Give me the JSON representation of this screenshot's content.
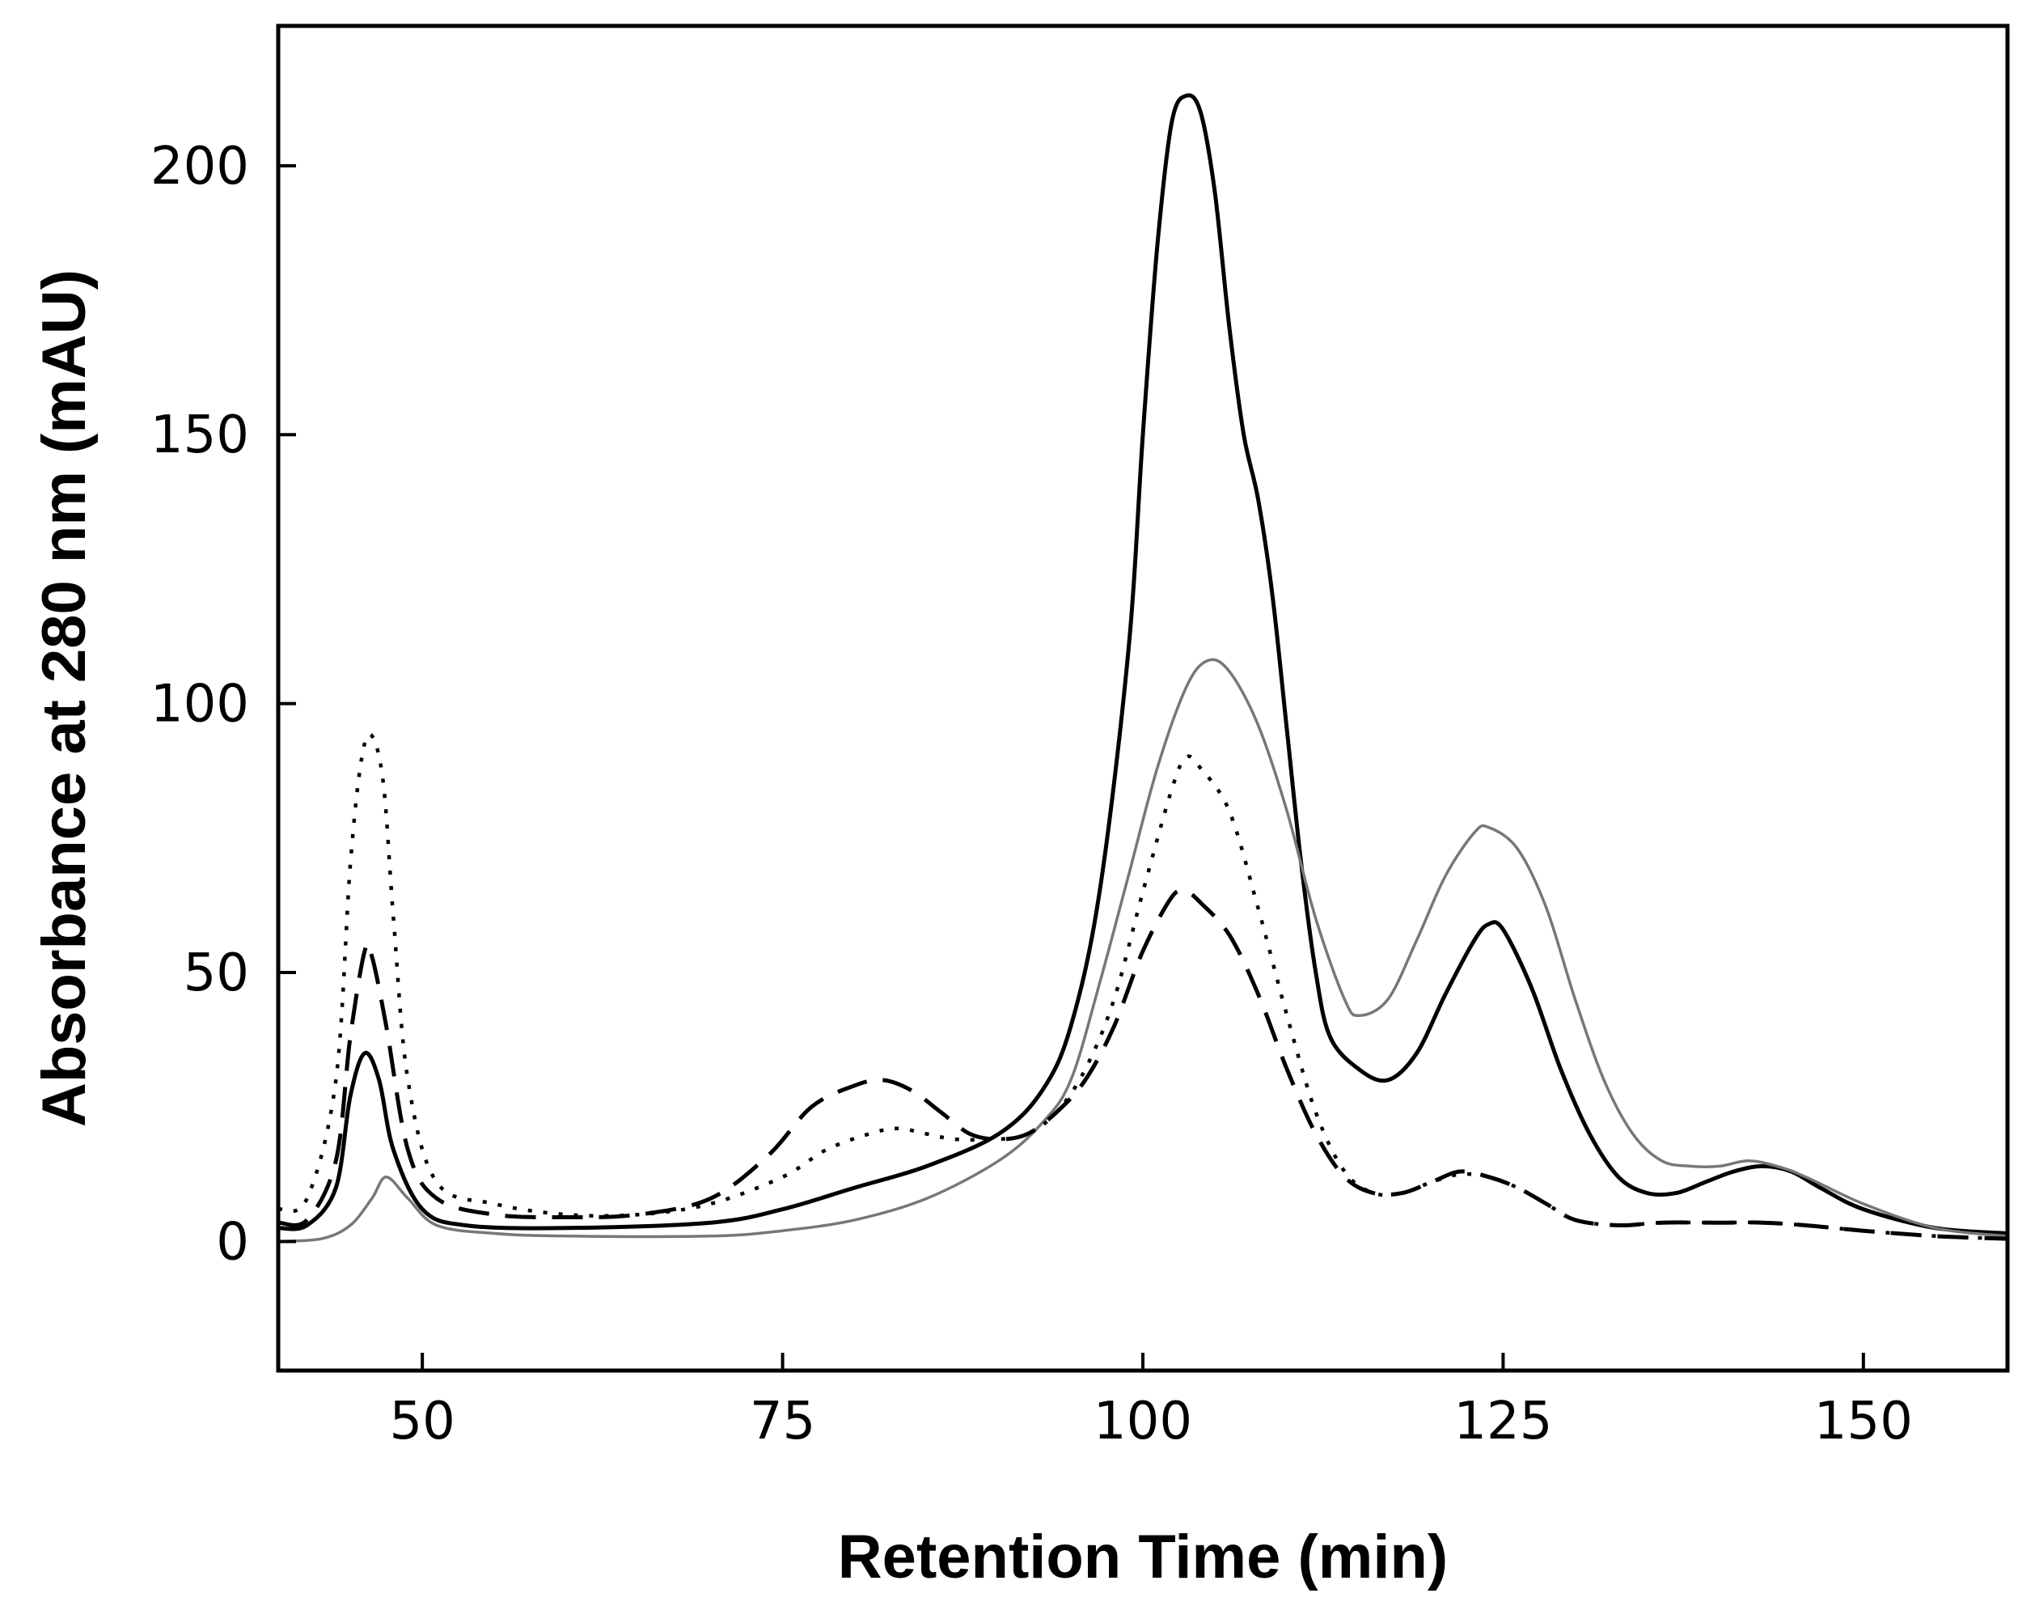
{
  "chart_data": {
    "type": "line",
    "title": "",
    "xlabel": "Retention Time (min)",
    "ylabel": "Absorbance at 280 nm (mAU)",
    "xlim": [
      40,
      160
    ],
    "ylim": [
      -24,
      226
    ],
    "xticks": [
      50,
      75,
      100,
      125,
      150
    ],
    "yticks": [
      0,
      50,
      100,
      150,
      200
    ],
    "grid": false,
    "legend": "none",
    "series": [
      {
        "name": "solid-black",
        "color": "#000000",
        "style": "solid",
        "points": [
          [
            40,
            2.5
          ],
          [
            42,
            3
          ],
          [
            44,
            10
          ],
          [
            45,
            27
          ],
          [
            46,
            35
          ],
          [
            47,
            30
          ],
          [
            48,
            17
          ],
          [
            50,
            6
          ],
          [
            53,
            3
          ],
          [
            60,
            2.5
          ],
          [
            70,
            3.5
          ],
          [
            75,
            6
          ],
          [
            80,
            10
          ],
          [
            85,
            14
          ],
          [
            90,
            20
          ],
          [
            93,
            28
          ],
          [
            95,
            40
          ],
          [
            97,
            65
          ],
          [
            99,
            110
          ],
          [
            100,
            150
          ],
          [
            101,
            185
          ],
          [
            102,
            208
          ],
          [
            103,
            213
          ],
          [
            104,
            210
          ],
          [
            105,
            195
          ],
          [
            106,
            170
          ],
          [
            107,
            150
          ],
          [
            108,
            138
          ],
          [
            109,
            120
          ],
          [
            110,
            95
          ],
          [
            111,
            70
          ],
          [
            112,
            50
          ],
          [
            113,
            38
          ],
          [
            115,
            32
          ],
          [
            117,
            30
          ],
          [
            119,
            35
          ],
          [
            121,
            46
          ],
          [
            123,
            56
          ],
          [
            124,
            59
          ],
          [
            125,
            58
          ],
          [
            127,
            47
          ],
          [
            129,
            32
          ],
          [
            131,
            20
          ],
          [
            133,
            12
          ],
          [
            135,
            9
          ],
          [
            137,
            9
          ],
          [
            139,
            11
          ],
          [
            141,
            13
          ],
          [
            143,
            14
          ],
          [
            145,
            13
          ],
          [
            147,
            10
          ],
          [
            150,
            6
          ],
          [
            155,
            2.5
          ],
          [
            160,
            1.5
          ]
        ]
      },
      {
        "name": "solid-gray",
        "color": "#777777",
        "style": "solid",
        "points": [
          [
            40,
            0
          ],
          [
            43,
            0.5
          ],
          [
            45,
            3
          ],
          [
            46.5,
            8
          ],
          [
            47.5,
            12
          ],
          [
            49,
            8
          ],
          [
            51,
            3
          ],
          [
            55,
            1.5
          ],
          [
            60,
            1
          ],
          [
            70,
            1
          ],
          [
            75,
            2
          ],
          [
            80,
            4
          ],
          [
            85,
            8
          ],
          [
            90,
            15
          ],
          [
            93,
            22
          ],
          [
            95,
            30
          ],
          [
            97,
            48
          ],
          [
            99,
            68
          ],
          [
            101,
            88
          ],
          [
            103,
            103
          ],
          [
            104.5,
            108
          ],
          [
            106,
            106
          ],
          [
            108,
            96
          ],
          [
            110,
            80
          ],
          [
            112,
            60
          ],
          [
            114,
            45
          ],
          [
            115,
            42
          ],
          [
            117,
            45
          ],
          [
            119,
            56
          ],
          [
            121,
            68
          ],
          [
            123,
            76
          ],
          [
            124,
            77
          ],
          [
            126,
            73
          ],
          [
            128,
            62
          ],
          [
            130,
            45
          ],
          [
            132,
            30
          ],
          [
            134,
            20
          ],
          [
            136,
            15
          ],
          [
            138,
            14
          ],
          [
            140,
            14
          ],
          [
            142,
            15
          ],
          [
            144,
            14
          ],
          [
            146,
            12
          ],
          [
            150,
            7
          ],
          [
            155,
            2.5
          ],
          [
            160,
            1
          ]
        ]
      },
      {
        "name": "dashed-black",
        "color": "#000000",
        "style": "dashed",
        "points": [
          [
            40,
            3.5
          ],
          [
            42,
            4
          ],
          [
            44,
            15
          ],
          [
            45,
            38
          ],
          [
            46,
            54
          ],
          [
            46.5,
            53
          ],
          [
            47.5,
            40
          ],
          [
            49,
            17
          ],
          [
            51,
            8
          ],
          [
            55,
            5
          ],
          [
            60,
            4.5
          ],
          [
            65,
            5
          ],
          [
            70,
            8
          ],
          [
            74,
            16
          ],
          [
            77,
            25
          ],
          [
            80,
            29
          ],
          [
            82,
            30
          ],
          [
            84,
            28
          ],
          [
            86,
            24
          ],
          [
            88,
            20
          ],
          [
            90,
            19
          ],
          [
            92,
            20
          ],
          [
            94,
            24
          ],
          [
            96,
            30
          ],
          [
            98,
            40
          ],
          [
            100,
            54
          ],
          [
            102,
            64
          ],
          [
            103,
            65
          ],
          [
            104,
            63
          ],
          [
            106,
            57
          ],
          [
            108,
            46
          ],
          [
            110,
            32
          ],
          [
            112,
            20
          ],
          [
            114,
            12
          ],
          [
            116,
            9
          ],
          [
            118,
            9
          ],
          [
            120,
            11
          ],
          [
            122,
            13
          ],
          [
            124,
            12
          ],
          [
            126,
            10
          ],
          [
            128,
            7
          ],
          [
            130,
            4
          ],
          [
            133,
            3
          ],
          [
            136,
            3.5
          ],
          [
            140,
            3.5
          ],
          [
            143,
            3.5
          ],
          [
            146,
            3
          ],
          [
            150,
            2
          ],
          [
            155,
            1
          ],
          [
            160,
            0.5
          ]
        ]
      },
      {
        "name": "dotted-black",
        "color": "#000000",
        "style": "dotted",
        "points": [
          [
            40,
            6
          ],
          [
            42,
            8
          ],
          [
            44,
            30
          ],
          [
            45,
            70
          ],
          [
            45.8,
            90
          ],
          [
            46.5,
            94
          ],
          [
            47.3,
            85
          ],
          [
            48,
            60
          ],
          [
            49,
            30
          ],
          [
            51,
            11
          ],
          [
            55,
            7
          ],
          [
            60,
            5
          ],
          [
            65,
            5
          ],
          [
            70,
            7
          ],
          [
            75,
            12
          ],
          [
            78,
            17
          ],
          [
            81,
            20
          ],
          [
            83,
            21
          ],
          [
            85,
            20
          ],
          [
            87,
            19
          ],
          [
            90,
            19
          ],
          [
            92,
            20
          ],
          [
            94,
            24
          ],
          [
            96,
            32
          ],
          [
            98,
            45
          ],
          [
            100,
            65
          ],
          [
            102,
            84
          ],
          [
            103,
            90
          ],
          [
            104,
            88
          ],
          [
            106,
            80
          ],
          [
            108,
            62
          ],
          [
            110,
            42
          ],
          [
            112,
            24
          ],
          [
            114,
            13
          ],
          [
            116,
            9
          ],
          [
            118,
            9
          ],
          [
            120,
            11
          ],
          [
            122,
            12.5
          ],
          [
            124,
            12
          ],
          [
            126,
            10
          ],
          [
            128,
            7
          ],
          [
            130,
            4
          ],
          [
            133,
            3
          ],
          [
            136,
            3.5
          ],
          [
            140,
            3.5
          ],
          [
            143,
            3.5
          ],
          [
            146,
            3
          ],
          [
            150,
            2
          ],
          [
            155,
            1
          ],
          [
            160,
            0.5
          ]
        ]
      }
    ]
  }
}
